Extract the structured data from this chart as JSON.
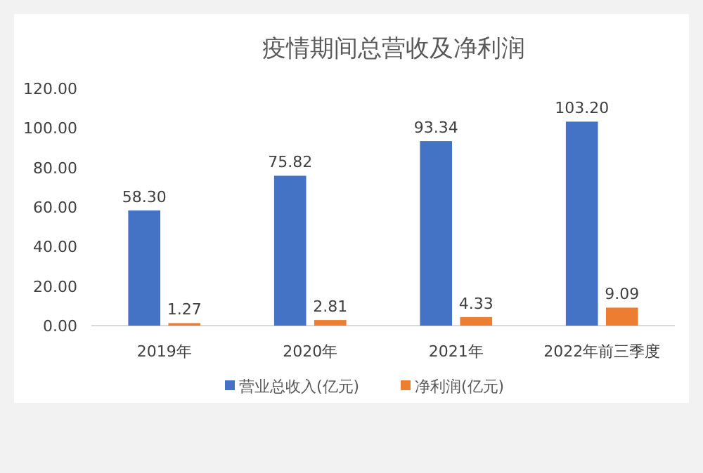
{
  "chart_data": {
    "type": "bar",
    "title": "疫情期间总营收及净利润",
    "categories": [
      "2019年",
      "2020年",
      "2021年",
      "2022年前三季度"
    ],
    "series": [
      {
        "name": "营业总收入(亿元)",
        "color": "#4472c4",
        "values": [
          58.3,
          75.82,
          93.34,
          103.2
        ],
        "value_labels": [
          "58.30",
          "75.82",
          "93.34",
          "103.20"
        ]
      },
      {
        "name": "净利润(亿元)",
        "color": "#ed7d31",
        "values": [
          1.27,
          2.81,
          4.33,
          9.09
        ],
        "value_labels": [
          "1.27",
          "2.81",
          "4.33",
          "9.09"
        ]
      }
    ],
    "ylim": [
      0,
      120
    ],
    "yticks": [
      {
        "value": 0,
        "label": "0.00"
      },
      {
        "value": 20,
        "label": "20.00"
      },
      {
        "value": 40,
        "label": "40.00"
      },
      {
        "value": 60,
        "label": "60.00"
      },
      {
        "value": 80,
        "label": "80.00"
      },
      {
        "value": 100,
        "label": "100.00"
      },
      {
        "value": 120,
        "label": "120.00"
      }
    ],
    "legend": "bottom",
    "grid": false
  }
}
